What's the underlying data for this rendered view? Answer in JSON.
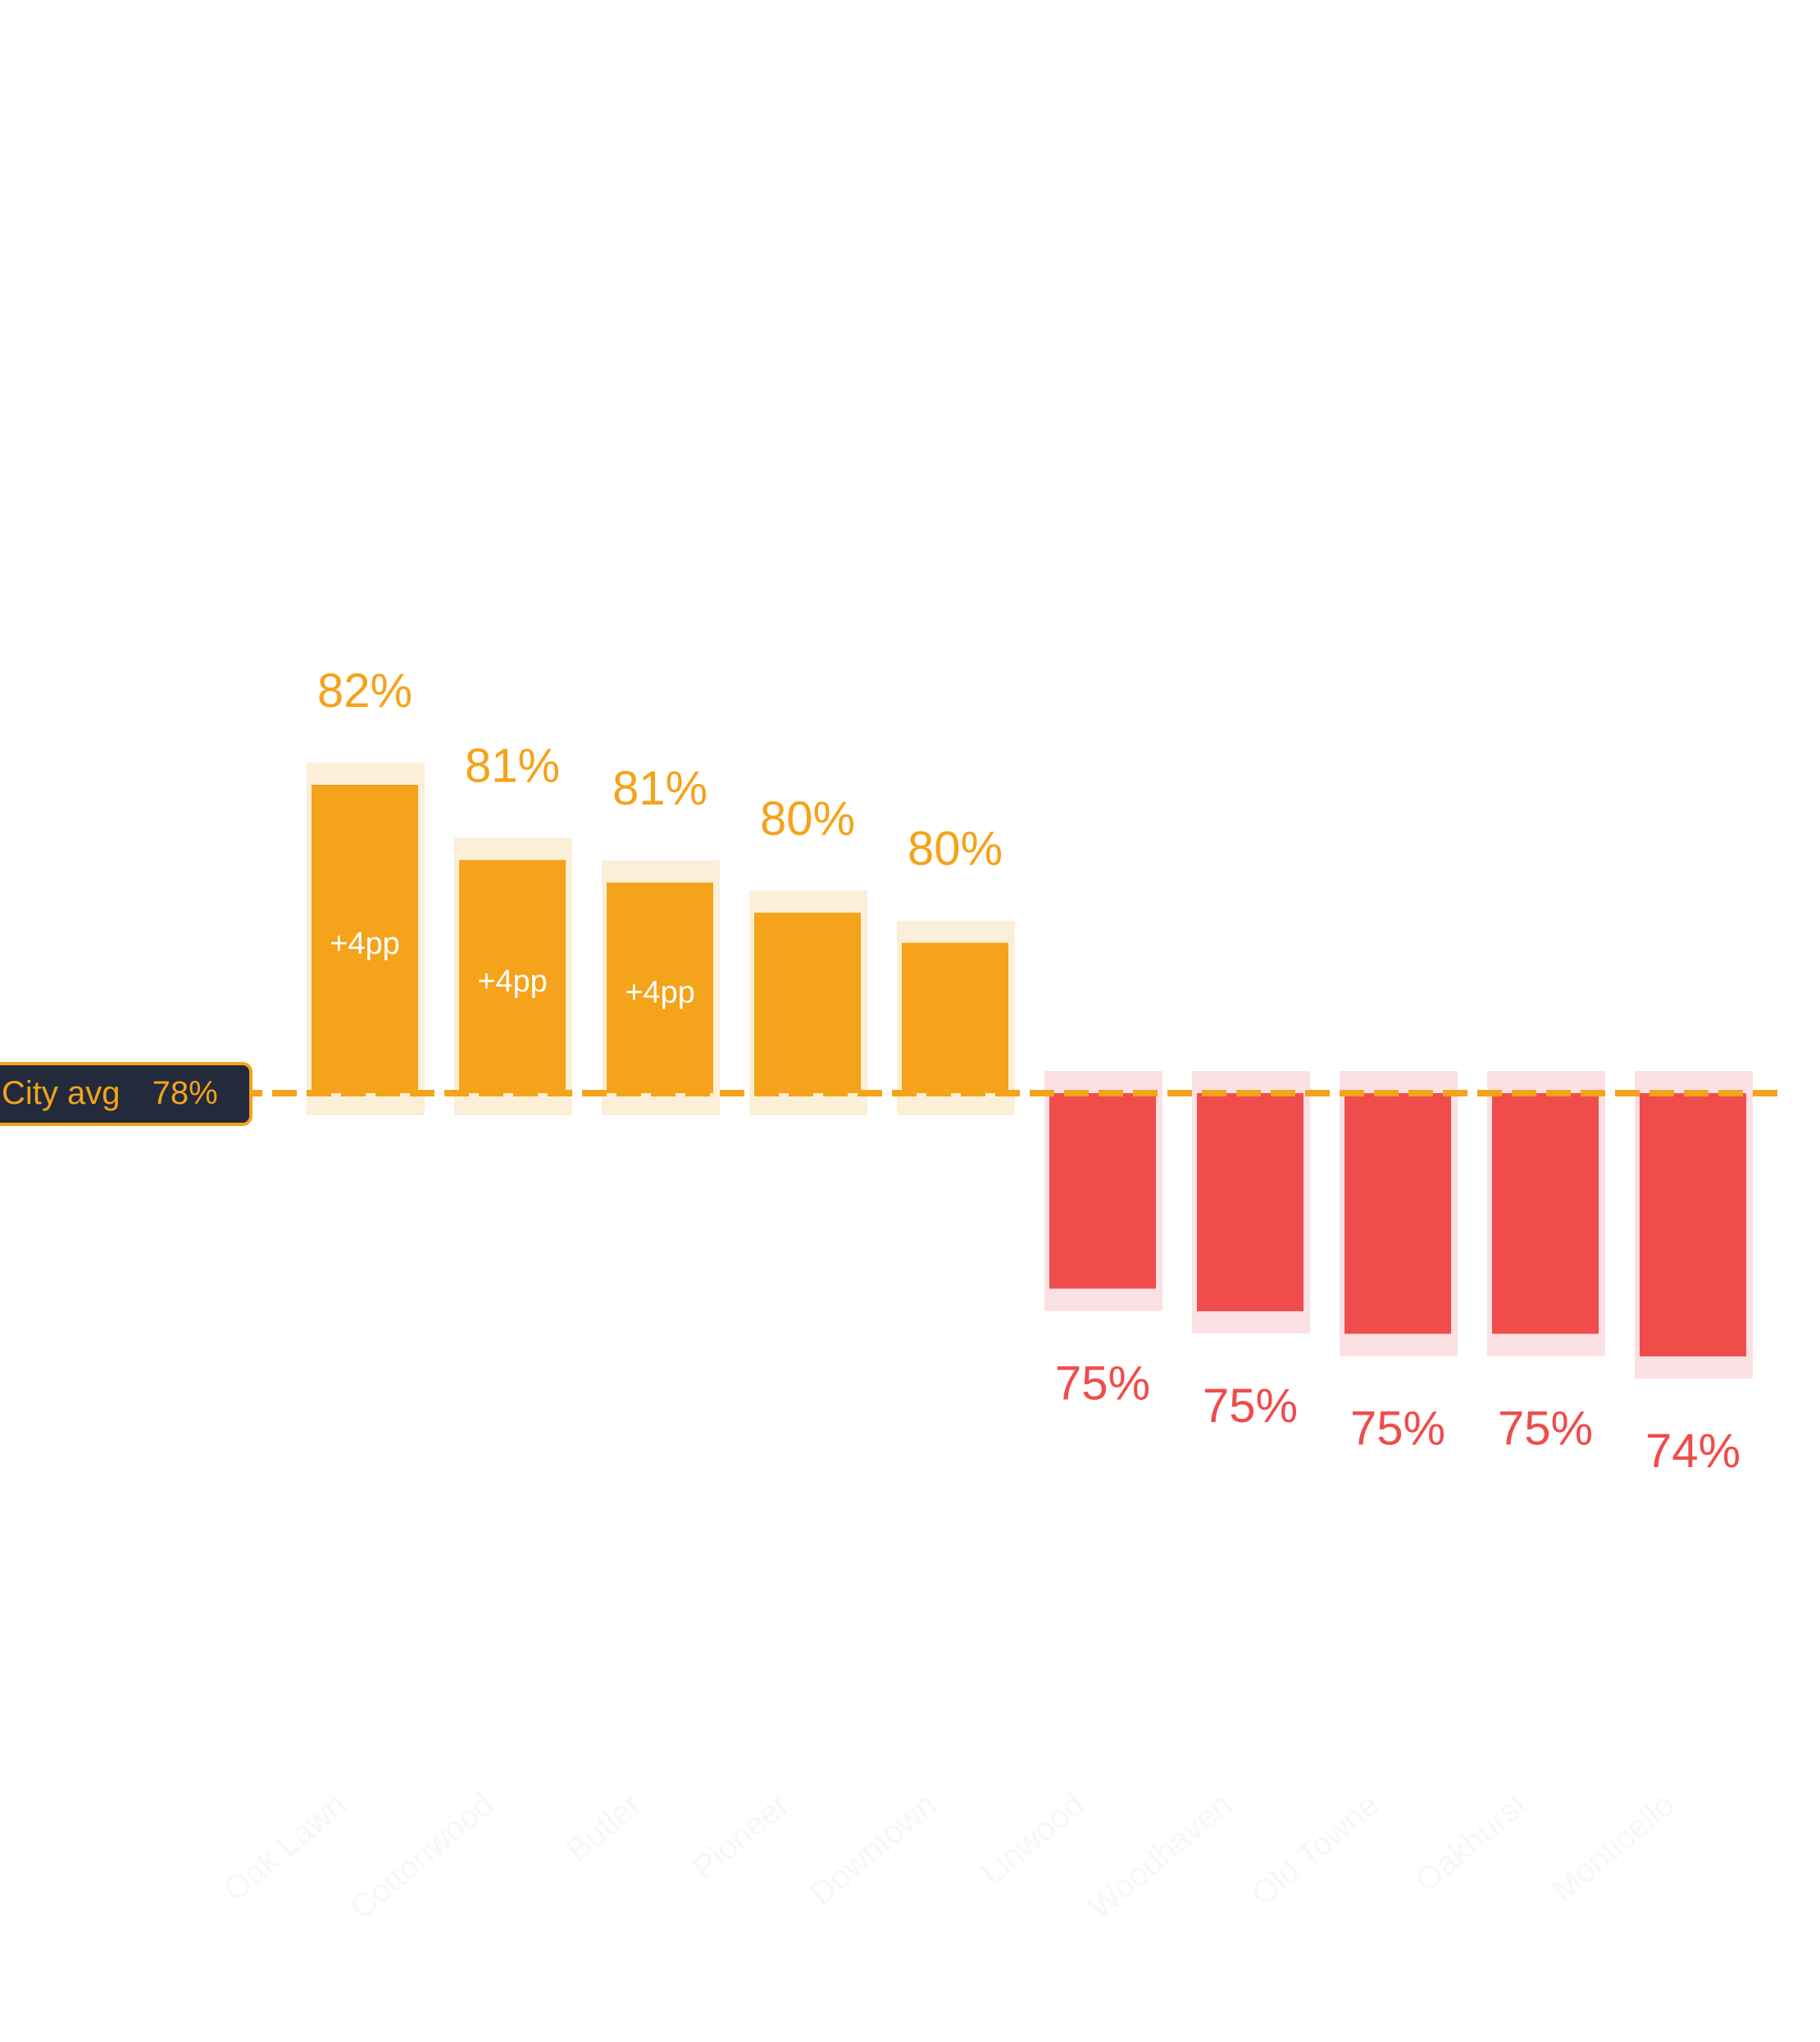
{
  "chart_data": {
    "type": "bar",
    "categories": [
      "Oak Lawn",
      "Cottonwood",
      "Butler",
      "Pioneer",
      "Downtown",
      "Linwood",
      "Woodhaven",
      "Old Towne",
      "Oakhurst",
      "Monticello"
    ],
    "values": [
      82.1,
      81.1,
      80.8,
      80.4,
      80.0,
      75.4,
      75.1,
      74.8,
      74.8,
      74.5
    ],
    "value_labels": [
      "82%",
      "81%",
      "81%",
      "80%",
      "80%",
      "75%",
      "75%",
      "75%",
      "75%",
      "74%"
    ],
    "delta_labels": [
      "+4pp",
      "+4pp",
      "+4pp",
      "",
      "",
      "",
      "",
      "",
      "",
      ""
    ],
    "reference": {
      "label": "City avg",
      "value_label": "78%",
      "value": 78
    },
    "colors": {
      "above": "#f4a31a",
      "above_band": "#fcefd8",
      "below": "#f04c4c",
      "below_band": "#fbe1e3",
      "reference_line": "#f4a31a",
      "badge_bg": "#232a3b",
      "badge_text": "#f4a31a",
      "delta_text": "#ffffff",
      "category_label": "#f7f7f7"
    },
    "title": "",
    "xlabel": "",
    "ylabel": "",
    "grid": false,
    "legend": "none"
  }
}
